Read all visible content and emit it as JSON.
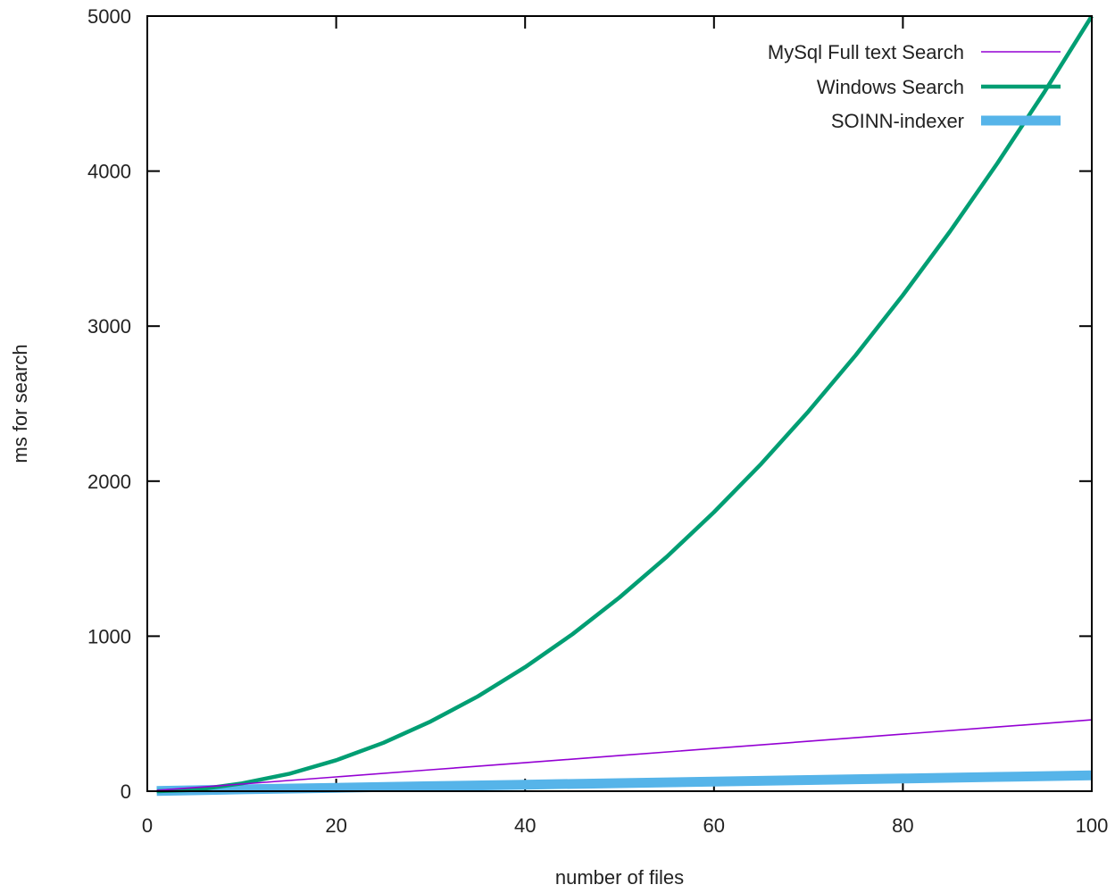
{
  "chart_data": {
    "type": "line",
    "title": "",
    "xlabel": "number of files",
    "ylabel": "ms for search",
    "xlim": [
      0,
      100
    ],
    "ylim": [
      0,
      5000
    ],
    "xticks": [
      0,
      20,
      40,
      60,
      80,
      100
    ],
    "yticks": [
      0,
      1000,
      2000,
      3000,
      4000,
      5000
    ],
    "grid": false,
    "legend_position": "top-right",
    "series": [
      {
        "name": "MySql Full text Search",
        "color": "#9400d3",
        "x": [
          1,
          10,
          20,
          30,
          40,
          50,
          60,
          70,
          80,
          90,
          100
        ],
        "y": [
          5,
          46,
          92,
          138,
          184,
          230,
          276,
          322,
          368,
          414,
          460
        ]
      },
      {
        "name": "Windows Search",
        "color": "#009e73",
        "x": [
          1,
          5,
          10,
          15,
          20,
          25,
          30,
          35,
          40,
          45,
          50,
          55,
          60,
          65,
          70,
          75,
          80,
          85,
          90,
          95,
          100
        ],
        "y": [
          0,
          8,
          50,
          112,
          200,
          312,
          450,
          612,
          800,
          1012,
          1250,
          1512,
          1800,
          2112,
          2450,
          2812,
          3200,
          3612,
          4050,
          4512,
          5000
        ]
      },
      {
        "name": "SOINN-indexer",
        "color": "#56b4e9",
        "x": [
          1,
          10,
          20,
          30,
          40,
          50,
          60,
          70,
          80,
          90,
          100
        ],
        "y": [
          2,
          12,
          22,
          32,
          42,
          52,
          62,
          72,
          82,
          92,
          102
        ]
      }
    ]
  }
}
